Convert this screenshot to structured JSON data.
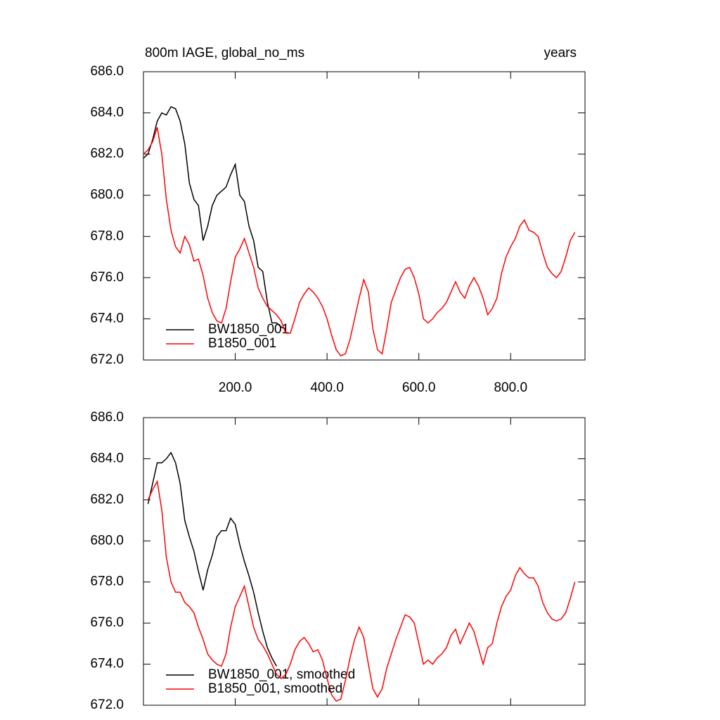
{
  "chart_data": [
    {
      "type": "line",
      "title": "800m IAGE, global_no_ms",
      "subtitle": "years",
      "x": [
        0,
        10,
        20,
        30,
        40,
        50,
        60,
        70,
        80,
        90,
        100,
        110,
        120,
        130,
        140,
        150,
        160,
        170,
        180,
        190,
        200,
        210,
        220,
        230,
        240,
        250,
        260,
        270,
        280,
        290,
        300,
        310,
        320,
        330,
        340,
        350,
        360,
        370,
        380,
        390,
        400,
        410,
        420,
        430,
        440,
        450,
        460,
        470,
        480,
        490,
        500,
        510,
        520,
        530,
        540,
        550,
        560,
        570,
        580,
        590,
        600,
        610,
        620,
        630,
        640,
        650,
        660,
        670,
        680,
        690,
        700,
        710,
        720,
        730,
        740,
        750,
        760,
        770,
        780,
        790,
        800,
        810,
        820,
        830,
        840,
        850,
        860,
        870,
        880,
        890,
        900,
        910,
        920,
        930,
        940
      ],
      "xlim": [
        0,
        962
      ],
      "xticks": [
        {
          "value": 200,
          "label": "200.0"
        },
        {
          "value": 400,
          "label": "400.0"
        },
        {
          "value": 600,
          "label": "600.0"
        },
        {
          "value": 800,
          "label": "800.0"
        }
      ],
      "ylim": [
        672,
        686
      ],
      "yticks": [
        {
          "value": 672,
          "label": "672.0"
        },
        {
          "value": 674,
          "label": "674.0"
        },
        {
          "value": 676,
          "label": "676.0"
        },
        {
          "value": 678,
          "label": "678.0"
        },
        {
          "value": 680,
          "label": "680.0"
        },
        {
          "value": 682,
          "label": "682.0"
        },
        {
          "value": 684,
          "label": "684.0"
        },
        {
          "value": 686,
          "label": "686.0"
        }
      ],
      "series": [
        {
          "name": "BW1850_001",
          "color": "#000000",
          "values": [
            681.8,
            682.0,
            682.7,
            683.6,
            684.0,
            683.9,
            684.3,
            684.2,
            683.6,
            682.5,
            680.6,
            679.8,
            679.5,
            677.8,
            678.5,
            679.5,
            680.0,
            680.2,
            680.4,
            681.0,
            681.5,
            680.0,
            679.7,
            678.5,
            677.8,
            676.5,
            676.3,
            674.8,
            673.8,
            673.8,
            673.6,
            673.5,
            null,
            null,
            null,
            null,
            null,
            null,
            null,
            null,
            null,
            null,
            null,
            null,
            null,
            null,
            null,
            null,
            null,
            null,
            null,
            null,
            null,
            null,
            null,
            null,
            null,
            null,
            null,
            null,
            null,
            null,
            null,
            null,
            null,
            null,
            null,
            null,
            null,
            null,
            null,
            null,
            null,
            null,
            null,
            null,
            null,
            null,
            null,
            null,
            null,
            null,
            null,
            null,
            null,
            null,
            null,
            null,
            null,
            null,
            null,
            null,
            null,
            null,
            null
          ]
        },
        {
          "name": "B1850_001",
          "color": "#ff0000",
          "values": [
            682.0,
            682.2,
            682.6,
            683.3,
            682.0,
            679.8,
            678.3,
            677.5,
            677.2,
            678.0,
            677.6,
            676.8,
            676.9,
            676.1,
            675.0,
            674.3,
            673.9,
            673.8,
            674.5,
            675.8,
            677.0,
            677.4,
            677.9,
            677.2,
            676.5,
            675.5,
            675.0,
            674.6,
            674.4,
            674.2,
            673.9,
            673.3,
            673.3,
            674.0,
            674.8,
            675.2,
            675.5,
            675.3,
            675.0,
            674.6,
            674.0,
            673.2,
            672.5,
            672.2,
            672.3,
            673.0,
            674.0,
            675.0,
            675.9,
            675.3,
            673.5,
            672.5,
            672.3,
            673.5,
            674.8,
            675.4,
            676.0,
            676.4,
            676.5,
            676.0,
            675.2,
            674.0,
            673.8,
            674.0,
            674.3,
            674.5,
            674.8,
            675.3,
            675.8,
            675.3,
            675.0,
            675.6,
            676.0,
            675.6,
            675.0,
            674.2,
            674.5,
            675.0,
            676.2,
            677.0,
            677.5,
            677.9,
            678.5,
            678.8,
            678.3,
            678.2,
            678.0,
            677.2,
            676.5,
            676.2,
            676.0,
            676.3,
            677.0,
            677.8,
            678.2
          ]
        }
      ]
    },
    {
      "type": "line",
      "x": [
        0,
        10,
        20,
        30,
        40,
        50,
        60,
        70,
        80,
        90,
        100,
        110,
        120,
        130,
        140,
        150,
        160,
        170,
        180,
        190,
        200,
        210,
        220,
        230,
        240,
        250,
        260,
        270,
        280,
        290,
        300,
        310,
        320,
        330,
        340,
        350,
        360,
        370,
        380,
        390,
        400,
        410,
        420,
        430,
        440,
        450,
        460,
        470,
        480,
        490,
        500,
        510,
        520,
        530,
        540,
        550,
        560,
        570,
        580,
        590,
        600,
        610,
        620,
        630,
        640,
        650,
        660,
        670,
        680,
        690,
        700,
        710,
        720,
        730,
        740,
        750,
        760,
        770,
        780,
        790,
        800,
        810,
        820,
        830,
        840,
        850,
        860,
        870,
        880,
        890,
        900,
        910,
        920,
        930,
        940
      ],
      "xlim": [
        0,
        962
      ],
      "xtick_values": [
        200,
        400,
        600,
        800
      ],
      "ylim": [
        672,
        686
      ],
      "yticks": [
        {
          "value": 672,
          "label": "672.0"
        },
        {
          "value": 674,
          "label": "674.0"
        },
        {
          "value": 676,
          "label": "676.0"
        },
        {
          "value": 678,
          "label": "678.0"
        },
        {
          "value": 680,
          "label": "680.0"
        },
        {
          "value": 682,
          "label": "682.0"
        },
        {
          "value": 684,
          "label": "684.0"
        },
        {
          "value": 686,
          "label": "686.0"
        }
      ],
      "series": [
        {
          "name": "BW1850_001, smoothed",
          "color": "#000000",
          "values": [
            null,
            681.8,
            682.8,
            683.8,
            683.8,
            684.0,
            684.3,
            683.8,
            682.8,
            681.0,
            680.2,
            679.5,
            678.5,
            677.6,
            678.6,
            679.3,
            680.2,
            680.5,
            680.5,
            681.1,
            680.8,
            679.8,
            679.0,
            678.3,
            677.5,
            676.5,
            675.6,
            674.8,
            674.3,
            673.9,
            null,
            null,
            null,
            null,
            null,
            null,
            null,
            null,
            null,
            null,
            null,
            null,
            null,
            null,
            null,
            null,
            null,
            null,
            null,
            null,
            null,
            null,
            null,
            null,
            null,
            null,
            null,
            null,
            null,
            null,
            null,
            null,
            null,
            null,
            null,
            null,
            null,
            null,
            null,
            null,
            null,
            null,
            null,
            null,
            null,
            null,
            null,
            null,
            null,
            null,
            null,
            null,
            null,
            null,
            null,
            null,
            null,
            null,
            null,
            null,
            null,
            null,
            null,
            null,
            null
          ]
        },
        {
          "name": "B1850_001, smoothed",
          "color": "#ff0000",
          "values": [
            null,
            682.0,
            682.5,
            682.9,
            681.5,
            679.2,
            678.0,
            677.5,
            677.5,
            677.0,
            676.8,
            676.5,
            675.8,
            675.2,
            674.5,
            674.2,
            674.0,
            673.9,
            674.5,
            675.8,
            676.8,
            677.3,
            677.8,
            676.8,
            675.8,
            675.2,
            674.9,
            674.5,
            674.0,
            673.5,
            673.3,
            673.5,
            674.0,
            674.7,
            675.1,
            675.3,
            675.0,
            674.6,
            674.7,
            674.2,
            673.3,
            672.5,
            672.2,
            672.3,
            673.2,
            674.3,
            675.2,
            675.8,
            675.3,
            674.0,
            672.8,
            672.4,
            672.8,
            673.8,
            674.5,
            675.2,
            675.8,
            676.4,
            676.3,
            676.0,
            675.0,
            674.0,
            674.2,
            674.0,
            674.3,
            674.5,
            674.8,
            675.4,
            675.7,
            675.0,
            675.5,
            676.0,
            675.6,
            674.8,
            674.0,
            674.8,
            675.0,
            676.0,
            676.8,
            677.3,
            677.6,
            678.3,
            678.7,
            678.4,
            678.2,
            678.2,
            677.8,
            677.0,
            676.5,
            676.2,
            676.1,
            676.2,
            676.5,
            677.2,
            678.0
          ]
        }
      ]
    }
  ]
}
